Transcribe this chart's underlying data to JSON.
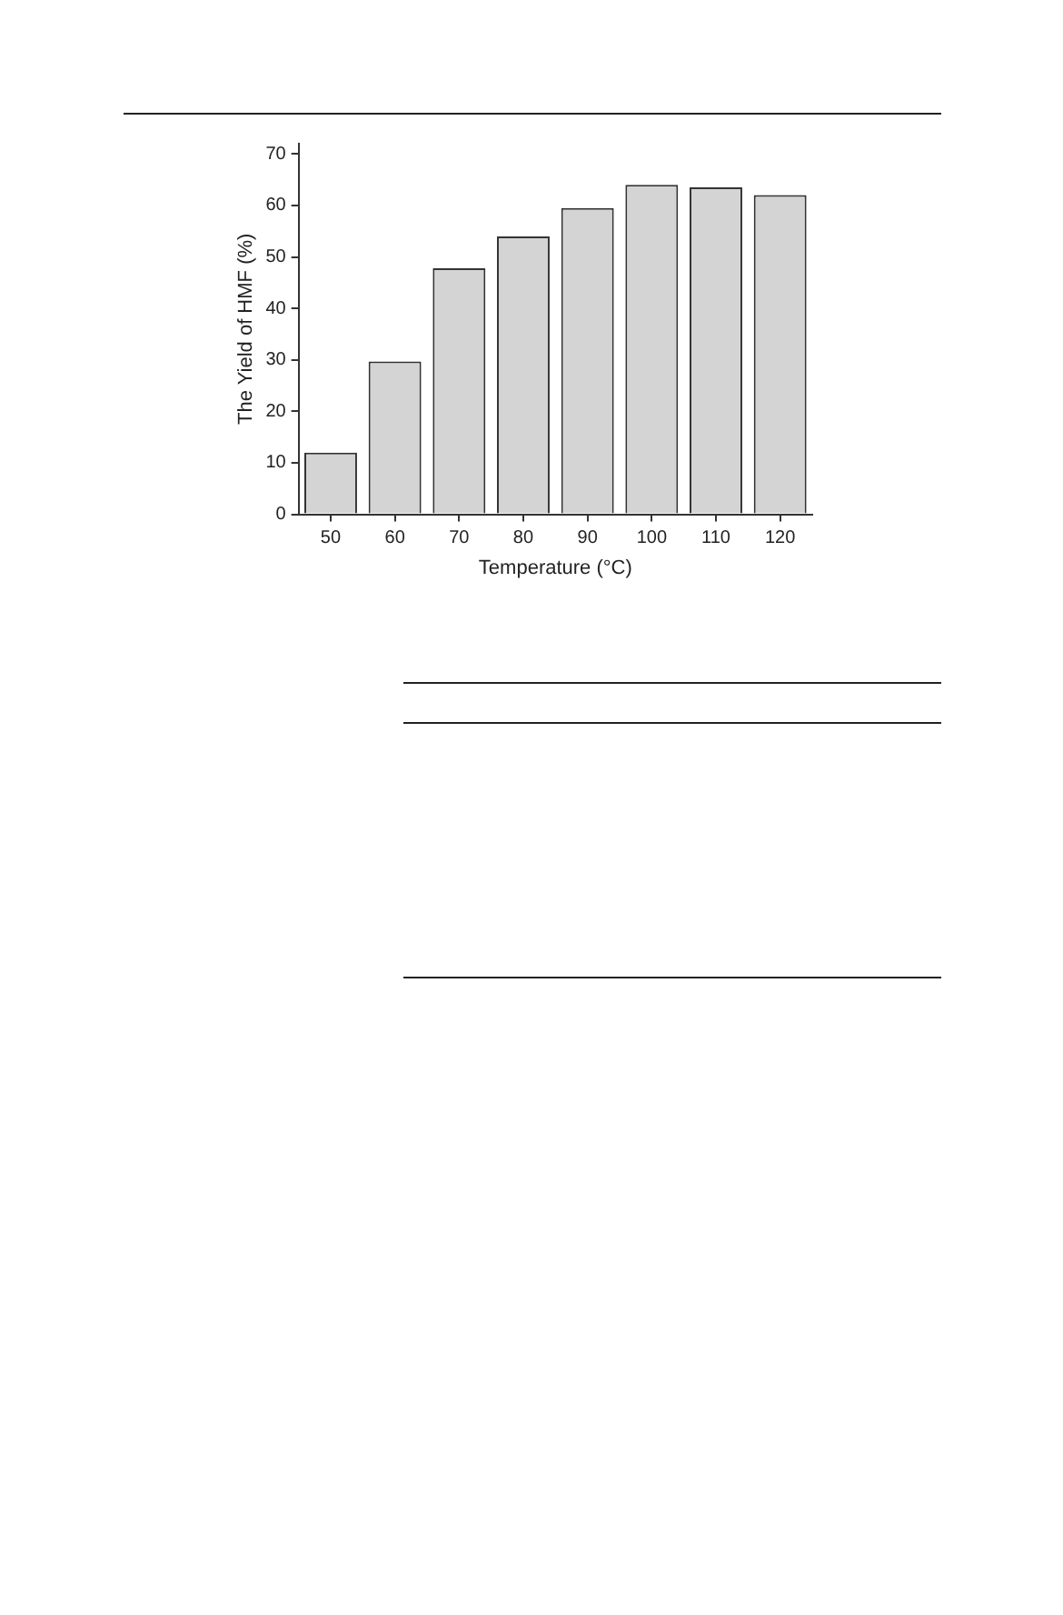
{
  "chart_data": {
    "type": "bar",
    "xlabel": "Temperature (°C)",
    "ylabel": "The Yield of HMF (%)",
    "categories": [
      "50",
      "60",
      "70",
      "80",
      "90",
      "100",
      "110",
      "120"
    ],
    "values": [
      12,
      29.7,
      47.8,
      54,
      59.5,
      64,
      63.5,
      62
    ],
    "color": "#d4d4d4",
    "ylim": [
      0,
      72
    ],
    "yticks": [
      0,
      10,
      20,
      30,
      40,
      50,
      60,
      70
    ],
    "grid": false,
    "legend": false
  }
}
